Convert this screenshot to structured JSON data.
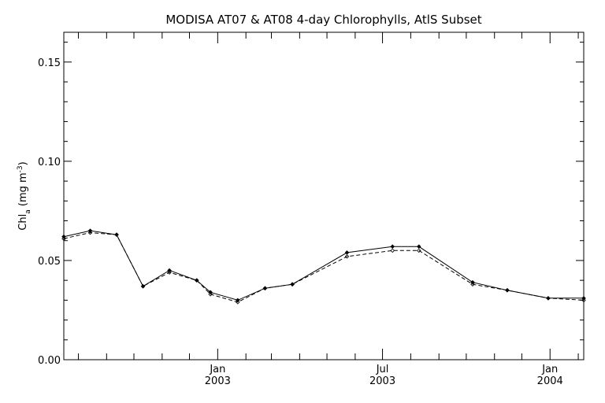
{
  "chart_data": {
    "type": "line",
    "title": "MODISA AT07 & AT08 4-day Chlorophylls, AtlS Subset",
    "ylabel_main": "Chl",
    "ylabel_sub": "a",
    "ylabel_units_pre": " (mg m",
    "ylabel_units_sup": "-3",
    "ylabel_units_post": ")",
    "ylim": [
      0,
      0.165
    ],
    "yticks": [
      0,
      0.05,
      0.1,
      0.15
    ],
    "ytick_labels": [
      "0.00",
      "0.05",
      "0.10",
      "0.15"
    ],
    "x_range": [
      "2002-07-16",
      "2004-02-07"
    ],
    "x_major_ticks": [
      {
        "date": "2003-01-01",
        "month": "Jan",
        "year": "2003"
      },
      {
        "date": "2003-07-01",
        "month": "Jul",
        "year": "2003"
      },
      {
        "date": "2004-01-01",
        "month": "Jan",
        "year": "2004"
      }
    ],
    "x_minor_ticks": [
      "2002-08-01",
      "2002-09-01",
      "2002-10-01",
      "2002-11-01",
      "2002-12-01",
      "2003-02-01",
      "2003-03-01",
      "2003-04-01",
      "2003-05-01",
      "2003-06-01",
      "2003-08-01",
      "2003-09-01",
      "2003-10-01",
      "2003-11-01",
      "2003-12-01",
      "2004-02-01"
    ],
    "series": [
      {
        "line_style": "solid",
        "x": [
          "2002-07-16",
          "2002-08-14",
          "2002-09-12",
          "2002-10-11",
          "2002-11-09",
          "2002-12-09",
          "2002-12-24",
          "2003-01-23",
          "2003-02-22",
          "2003-03-24",
          "2003-05-23",
          "2003-07-12",
          "2003-08-10",
          "2003-10-08",
          "2003-11-15",
          "2003-12-30",
          "2004-02-07"
        ],
        "y": [
          0.062,
          0.065,
          0.063,
          0.037,
          0.045,
          0.04,
          0.034,
          0.03,
          0.036,
          0.038,
          0.054,
          0.057,
          0.057,
          0.039,
          0.035,
          0.031,
          0.031
        ]
      },
      {
        "line_style": "dashed",
        "x": [
          "2002-07-16",
          "2002-08-14",
          "2002-09-12",
          "2002-10-11",
          "2002-11-09",
          "2002-12-09",
          "2002-12-24",
          "2003-01-23",
          "2003-02-22",
          "2003-03-24",
          "2003-05-23",
          "2003-07-12",
          "2003-08-10",
          "2003-10-08",
          "2003-11-15",
          "2003-12-30",
          "2004-02-07"
        ],
        "y": [
          0.061,
          0.064,
          0.063,
          0.037,
          0.044,
          0.04,
          0.033,
          0.029,
          0.036,
          0.038,
          0.052,
          0.055,
          0.055,
          0.038,
          0.035,
          0.031,
          0.03
        ]
      }
    ],
    "grid": false,
    "line_color": "#000000",
    "background": "#ffffff"
  }
}
